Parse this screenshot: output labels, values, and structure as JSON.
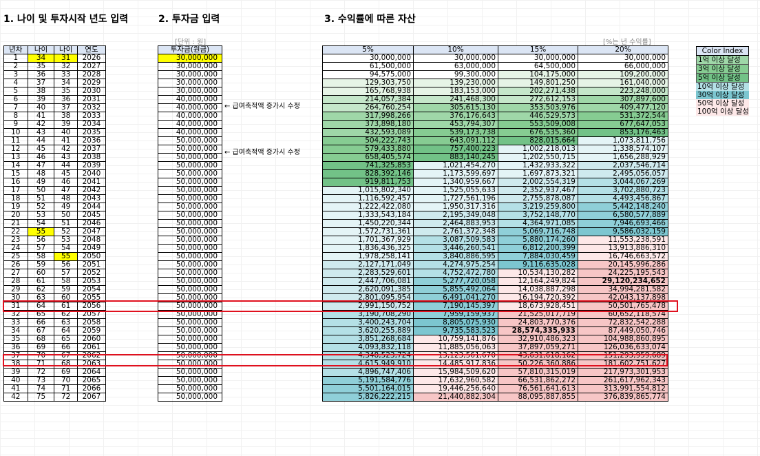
{
  "titles": {
    "t1": "1. 나이 및 투자시작 년도 입력",
    "t2": "2. 투자금 입력",
    "t3": "3. 수익률에 따른 자산"
  },
  "notes": {
    "unit": "[단위 : 원]",
    "rate": "[%는 년 수익률]"
  },
  "headers": {
    "years": "년차",
    "age1": "나이",
    "age2": "나이",
    "year": "연도",
    "invest": "투자금(원금)",
    "rates": [
      "5%",
      "10%",
      "15%",
      "20%"
    ]
  },
  "annotations": {
    "a1": "← 급여축적액 증가시 수정",
    "a2": "← 급여축적액 증가시 수정"
  },
  "legend": {
    "title": "Color Index",
    "items": [
      "1억 이상 달성",
      "3억 이상 달성",
      "5억 이상 달성",
      "10억 이상 달성",
      "30억 이상 달성",
      "50억 이상 달성",
      "100억 이상 달성"
    ]
  },
  "colors": {
    "highlight": "#ffff00",
    "redbox": "#e0101e",
    "header_bg": "#dbe5f4"
  },
  "rows": [
    [
      "1",
      "34",
      "31",
      "2026",
      "30,000,000",
      "30,000,000",
      "30,000,000",
      "30,000,000",
      "30,000,000"
    ],
    [
      "2",
      "35",
      "32",
      "2027",
      "30,000,000",
      "61,500,000",
      "63,000,000",
      "64,500,000",
      "66,000,000"
    ],
    [
      "3",
      "36",
      "33",
      "2028",
      "30,000,000",
      "94,575,000",
      "99,300,000",
      "104,175,000",
      "109,200,000"
    ],
    [
      "4",
      "37",
      "34",
      "2029",
      "30,000,000",
      "129,303,750",
      "139,230,000",
      "149,801,250",
      "161,040,000"
    ],
    [
      "5",
      "38",
      "35",
      "2030",
      "30,000,000",
      "165,768,938",
      "183,153,000",
      "202,271,438",
      "223,248,000"
    ],
    [
      "6",
      "39",
      "36",
      "2031",
      "40,000,000",
      "214,057,384",
      "241,468,300",
      "272,612,153",
      "307,897,600"
    ],
    [
      "7",
      "40",
      "37",
      "2032",
      "40,000,000",
      "264,760,254",
      "305,615,130",
      "353,503,976",
      "409,477,120"
    ],
    [
      "8",
      "41",
      "38",
      "2033",
      "40,000,000",
      "317,998,266",
      "376,176,643",
      "446,529,573",
      "531,372,544"
    ],
    [
      "9",
      "42",
      "39",
      "2034",
      "40,000,000",
      "373,898,180",
      "453,794,307",
      "553,509,008",
      "677,647,053"
    ],
    [
      "10",
      "43",
      "40",
      "2035",
      "40,000,000",
      "432,593,089",
      "539,173,738",
      "676,535,360",
      "853,176,463"
    ],
    [
      "11",
      "44",
      "41",
      "2036",
      "50,000,000",
      "504,222,743",
      "643,091,112",
      "828,015,664",
      "1,073,811,756"
    ],
    [
      "12",
      "45",
      "42",
      "2037",
      "50,000,000",
      "579,433,880",
      "757,400,223",
      "1,002,218,013",
      "1,338,574,107"
    ],
    [
      "13",
      "46",
      "43",
      "2038",
      "50,000,000",
      "658,405,574",
      "883,140,245",
      "1,202,550,715",
      "1,656,288,929"
    ],
    [
      "14",
      "47",
      "44",
      "2039",
      "50,000,000",
      "741,325,853",
      "1,021,454,270",
      "1,432,933,322",
      "2,037,546,714"
    ],
    [
      "15",
      "48",
      "45",
      "2040",
      "50,000,000",
      "828,392,146",
      "1,173,599,697",
      "1,697,873,321",
      "2,495,056,057"
    ],
    [
      "16",
      "49",
      "46",
      "2041",
      "50,000,000",
      "919,811,753",
      "1,340,959,667",
      "2,002,554,319",
      "3,044,067,269"
    ],
    [
      "17",
      "50",
      "47",
      "2042",
      "50,000,000",
      "1,015,802,340",
      "1,525,055,633",
      "2,352,937,467",
      "3,702,880,723"
    ],
    [
      "18",
      "51",
      "48",
      "2043",
      "50,000,000",
      "1,116,592,457",
      "1,727,561,196",
      "2,755,878,087",
      "4,493,456,867"
    ],
    [
      "19",
      "52",
      "49",
      "2044",
      "50,000,000",
      "1,222,422,080",
      "1,950,317,316",
      "3,219,259,800",
      "5,442,148,240"
    ],
    [
      "20",
      "53",
      "50",
      "2045",
      "50,000,000",
      "1,333,543,184",
      "2,195,349,048",
      "3,752,148,770",
      "6,580,577,889"
    ],
    [
      "21",
      "54",
      "51",
      "2046",
      "50,000,000",
      "1,450,220,344",
      "2,464,883,953",
      "4,364,971,085",
      "7,946,693,466"
    ],
    [
      "22",
      "55",
      "52",
      "2047",
      "50,000,000",
      "1,572,731,361",
      "2,761,372,348",
      "5,069,716,748",
      "9,586,032,159"
    ],
    [
      "23",
      "56",
      "53",
      "2048",
      "50,000,000",
      "1,701,367,929",
      "3,087,509,583",
      "5,880,174,260",
      "11,553,238,591"
    ],
    [
      "24",
      "57",
      "54",
      "2049",
      "50,000,000",
      "1,836,436,325",
      "3,446,260,541",
      "6,812,200,399",
      "13,913,886,310"
    ],
    [
      "25",
      "58",
      "55",
      "2050",
      "50,000,000",
      "1,978,258,141",
      "3,840,886,595",
      "7,884,030,459",
      "16,746,663,572"
    ],
    [
      "26",
      "59",
      "56",
      "2051",
      "50,000,000",
      "2,127,171,049",
      "4,274,975,254",
      "9,116,635,028",
      "20,145,996,286"
    ],
    [
      "27",
      "60",
      "57",
      "2052",
      "50,000,000",
      "2,283,529,601",
      "4,752,472,780",
      "10,534,130,282",
      "24,225,195,543"
    ],
    [
      "28",
      "61",
      "58",
      "2053",
      "50,000,000",
      "2,447,706,081",
      "5,277,720,058",
      "12,164,249,824",
      "29,120,234,652"
    ],
    [
      "29",
      "62",
      "59",
      "2054",
      "50,000,000",
      "2,620,091,385",
      "5,855,492,064",
      "14,038,887,298",
      "34,994,281,582"
    ],
    [
      "30",
      "63",
      "60",
      "2055",
      "50,000,000",
      "2,801,095,954",
      "6,491,041,270",
      "16,194,720,392",
      "42,043,137,898"
    ],
    [
      "31",
      "64",
      "61",
      "2056",
      "50,000,000",
      "2,991,150,752",
      "7,190,145,397",
      "18,673,928,451",
      "50,501,765,478"
    ],
    [
      "32",
      "65",
      "62",
      "2057",
      "50,000,000",
      "3,190,708,290",
      "7,959,159,937",
      "21,525,017,719",
      "60,652,118,574"
    ],
    [
      "33",
      "66",
      "63",
      "2058",
      "50,000,000",
      "3,400,243,704",
      "8,805,075,930",
      "24,803,770,376",
      "72,832,542,288"
    ],
    [
      "34",
      "67",
      "64",
      "2059",
      "50,000,000",
      "3,620,255,889",
      "9,735,583,523",
      "28,574,335,933",
      "87,449,050,746"
    ],
    [
      "35",
      "68",
      "65",
      "2060",
      "50,000,000",
      "3,851,268,684",
      "10,759,141,876",
      "32,910,486,323",
      "104,988,860,895"
    ],
    [
      "36",
      "69",
      "66",
      "2061",
      "50,000,000",
      "4,093,832,118",
      "11,885,056,063",
      "37,897,059,271",
      "126,036,633,074"
    ],
    [
      "37",
      "70",
      "67",
      "2062",
      "50,000,000",
      "4,348,523,724",
      "13,123,561,670",
      "43,631,618,162",
      "151,293,959,689"
    ],
    [
      "38",
      "71",
      "68",
      "2063",
      "50,000,000",
      "4,615,949,910",
      "14,485,917,836",
      "50,226,360,886",
      "181,602,751,627"
    ],
    [
      "39",
      "72",
      "69",
      "2064",
      "50,000,000",
      "4,896,747,406",
      "15,984,509,620",
      "57,810,315,019",
      "217,973,301,953"
    ],
    [
      "40",
      "73",
      "70",
      "2065",
      "50,000,000",
      "5,191,584,776",
      "17,632,960,582",
      "66,531,862,272",
      "261,617,962,343"
    ],
    [
      "41",
      "74",
      "71",
      "2066",
      "50,000,000",
      "5,501,164,015",
      "19,446,256,640",
      "76,561,641,613",
      "313,991,554,812"
    ],
    [
      "42",
      "75",
      "72",
      "2067",
      "50,000,000",
      "5,826,222,215",
      "21,440,882,304",
      "88,095,887,855",
      "376,839,865,774"
    ]
  ]
}
